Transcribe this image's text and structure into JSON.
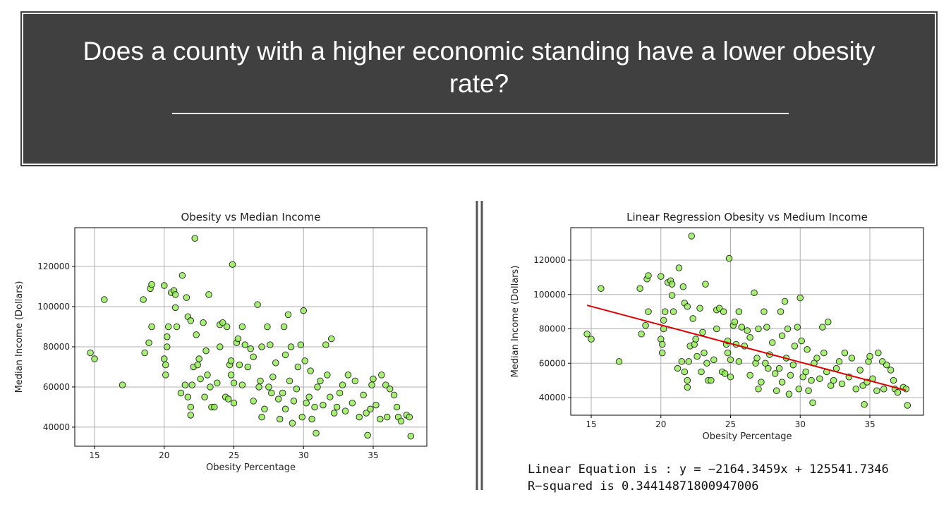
{
  "header": {
    "title": "Does a county with a higher economic standing have a lower obesity rate?"
  },
  "chart_data": [
    {
      "type": "scatter",
      "title": "Obesity  vs Median Income",
      "x_label": "Obesity Percentage",
      "y_label": "Median Income (Dollars)",
      "color": "#90ee50",
      "grid": true,
      "xlim": [
        13.58,
        38.85
      ],
      "ylim": [
        30500,
        139300
      ],
      "xticks": [
        15,
        20,
        25,
        30,
        35
      ],
      "yticks": [
        40000,
        60000,
        80000,
        100000,
        120000
      ],
      "x": [
        14.7,
        15,
        15.7,
        17,
        18.5,
        18.6,
        18.9,
        19,
        19.1,
        19.1,
        20,
        20,
        20.1,
        20.1,
        20.2,
        20.2,
        20.3,
        20.5,
        20.7,
        20.8,
        20.8,
        20.9,
        21.2,
        21.3,
        21.5,
        21.6,
        21.7,
        21.7,
        21.9,
        21.9,
        21.9,
        22,
        22.1,
        22.2,
        22.3,
        22.4,
        22.5,
        22.6,
        22.8,
        22.9,
        23,
        23.1,
        23.2,
        23.3,
        23.4,
        23.6,
        23.8,
        24,
        24,
        24.2,
        24.4,
        24.5,
        24.6,
        24.7,
        24.8,
        24.8,
        24.9,
        25,
        25,
        25.2,
        25.3,
        25.4,
        25.6,
        25.6,
        25.8,
        26,
        26.2,
        26.4,
        26.4,
        26.7,
        26.8,
        26.9,
        27,
        27,
        27.2,
        27.4,
        27.5,
        27.6,
        27.7,
        27.8,
        28,
        28.2,
        28.3,
        28.5,
        28.6,
        28.7,
        28.7,
        28.9,
        29,
        29.1,
        29.2,
        29.3,
        29.5,
        29.6,
        29.8,
        29.9,
        30,
        30.1,
        30.2,
        30.4,
        30.5,
        30.6,
        30.8,
        30.9,
        31,
        31.2,
        31.4,
        31.6,
        31.7,
        31.9,
        32,
        32.2,
        32.4,
        32.6,
        32.8,
        33,
        33.2,
        33.5,
        33.7,
        34,
        34.3,
        34.5,
        34.6,
        34.8,
        34.9,
        35,
        35.2,
        35.5,
        35.6,
        35.9,
        36,
        36.2,
        36.5,
        36.7,
        36.8,
        37,
        37.4,
        37.6,
        37.7
      ],
      "y": [
        77000,
        74000,
        103500,
        61000,
        103500,
        77000,
        82000,
        109000,
        111000,
        90000,
        110500,
        74000,
        71000,
        66000,
        80000,
        85000,
        90000,
        107000,
        108000,
        106000,
        99500,
        90000,
        57000,
        115500,
        61000,
        104500,
        55000,
        95000,
        93000,
        50000,
        46000,
        61000,
        70000,
        134000,
        86000,
        71000,
        74000,
        64000,
        92000,
        55000,
        78000,
        66000,
        106000,
        60000,
        50000,
        50000,
        62000,
        91000,
        80000,
        92000,
        55000,
        90000,
        54000,
        71000,
        66000,
        73000,
        121000,
        62000,
        52000,
        82000,
        84000,
        71000,
        90000,
        61000,
        81000,
        70000,
        79000,
        75000,
        53000,
        101000,
        60000,
        63000,
        45000,
        80000,
        49000,
        90000,
        60000,
        81000,
        57000,
        65000,
        72000,
        54000,
        44000,
        57000,
        90000,
        76000,
        49000,
        96000,
        63000,
        80000,
        42000,
        53000,
        59000,
        70000,
        81000,
        45000,
        98000,
        73000,
        52000,
        55000,
        68000,
        44000,
        50000,
        37000,
        60000,
        63000,
        51000,
        81000,
        66000,
        55000,
        84000,
        47000,
        50000,
        57000,
        61000,
        48000,
        66000,
        52000,
        63000,
        45000,
        56000,
        47000,
        36000,
        49000,
        61000,
        64000,
        51000,
        44000,
        66000,
        61000,
        45000,
        59000,
        56000,
        50000,
        45000,
        43000,
        46000,
        45000,
        35500
      ]
    },
    {
      "type": "scatter",
      "title": "Linear Regression Obesity vs Medium Income",
      "x_label": "Obesity Percentage",
      "y_label": "Median Income (Dollars)",
      "color": "#90ee50",
      "grid": true,
      "xlim": [
        13.53,
        38.85
      ],
      "ylim": [
        29750,
        138870
      ],
      "xticks": [
        15,
        20,
        25,
        30,
        35
      ],
      "yticks": [
        40000,
        60000,
        80000,
        100000,
        120000
      ],
      "x": [
        14.7,
        15,
        15.7,
        17,
        18.5,
        18.6,
        18.9,
        19,
        19.1,
        19.1,
        20,
        20,
        20.1,
        20.1,
        20.2,
        20.2,
        20.3,
        20.5,
        20.7,
        20.8,
        20.8,
        20.9,
        21.2,
        21.3,
        21.5,
        21.6,
        21.7,
        21.7,
        21.9,
        21.9,
        21.9,
        22,
        22.1,
        22.2,
        22.3,
        22.4,
        22.5,
        22.6,
        22.8,
        22.9,
        23,
        23.1,
        23.2,
        23.3,
        23.4,
        23.6,
        23.8,
        24,
        24,
        24.2,
        24.4,
        24.5,
        24.6,
        24.7,
        24.8,
        24.8,
        24.9,
        25,
        25,
        25.2,
        25.3,
        25.4,
        25.6,
        25.6,
        25.8,
        26,
        26.2,
        26.4,
        26.4,
        26.7,
        26.8,
        26.9,
        27,
        27,
        27.2,
        27.4,
        27.5,
        27.6,
        27.7,
        27.8,
        28,
        28.2,
        28.3,
        28.5,
        28.6,
        28.7,
        28.7,
        28.9,
        29,
        29.1,
        29.2,
        29.3,
        29.5,
        29.6,
        29.8,
        29.9,
        30,
        30.1,
        30.2,
        30.4,
        30.5,
        30.6,
        30.8,
        30.9,
        31,
        31.2,
        31.4,
        31.6,
        31.7,
        31.9,
        32,
        32.2,
        32.4,
        32.6,
        32.8,
        33,
        33.2,
        33.5,
        33.7,
        34,
        34.3,
        34.5,
        34.6,
        34.8,
        34.9,
        35,
        35.2,
        35.5,
        35.6,
        35.9,
        36,
        36.2,
        36.5,
        36.7,
        36.8,
        37,
        37.4,
        37.6,
        37.7
      ],
      "y": [
        77000,
        74000,
        103500,
        61000,
        103500,
        77000,
        82000,
        109000,
        111000,
        90000,
        110500,
        74000,
        71000,
        66000,
        80000,
        85000,
        90000,
        107000,
        108000,
        106000,
        99500,
        90000,
        57000,
        115500,
        61000,
        104500,
        55000,
        95000,
        93000,
        50000,
        46000,
        61000,
        70000,
        134000,
        86000,
        71000,
        74000,
        64000,
        92000,
        55000,
        78000,
        66000,
        106000,
        60000,
        50000,
        50000,
        62000,
        91000,
        80000,
        92000,
        55000,
        90000,
        54000,
        71000,
        66000,
        73000,
        121000,
        62000,
        52000,
        82000,
        84000,
        71000,
        90000,
        61000,
        81000,
        70000,
        79000,
        75000,
        53000,
        101000,
        60000,
        63000,
        45000,
        80000,
        49000,
        90000,
        60000,
        81000,
        57000,
        65000,
        72000,
        54000,
        44000,
        57000,
        90000,
        76000,
        49000,
        96000,
        63000,
        80000,
        42000,
        53000,
        59000,
        70000,
        81000,
        45000,
        98000,
        73000,
        52000,
        55000,
        68000,
        44000,
        50000,
        37000,
        60000,
        63000,
        51000,
        81000,
        66000,
        55000,
        84000,
        47000,
        50000,
        57000,
        61000,
        48000,
        66000,
        52000,
        63000,
        45000,
        56000,
        47000,
        36000,
        49000,
        61000,
        64000,
        51000,
        44000,
        66000,
        61000,
        45000,
        59000,
        56000,
        50000,
        45000,
        43000,
        46000,
        45000,
        35500
      ],
      "fit_line": {
        "x": [
          14.7,
          37.6
        ],
        "y": [
          93724,
          44162
        ],
        "color": "#e00000"
      },
      "annotations": [
        "Linear Equation is : y = −2164.3459x + 125541.7346",
        "R−squared is 0.34414871800947006"
      ]
    }
  ]
}
